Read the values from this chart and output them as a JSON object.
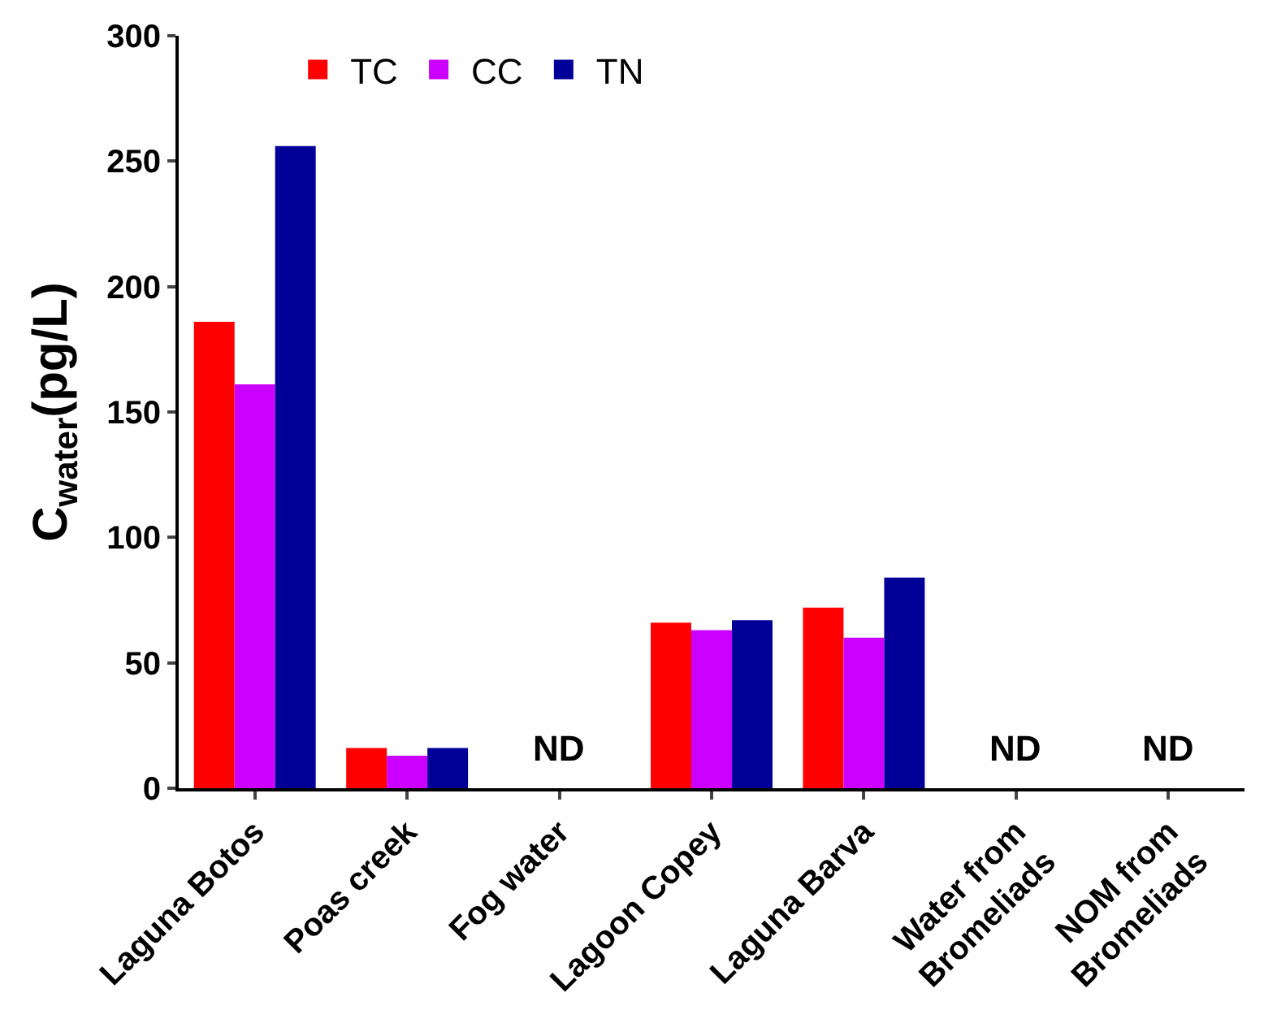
{
  "chart_data": {
    "type": "bar",
    "ylabel": "C$_{water}$(pg/L)",
    "categories": [
      "Laguna Botos",
      "Poas creek",
      "Fog water",
      "Lagoon Copey",
      "Laguna Barva",
      "Water from\nBromeliads",
      "NOM from\nBromeliads"
    ],
    "series": [
      {
        "name": "TC",
        "color": "#ff0000",
        "values": [
          186,
          16,
          null,
          66,
          72,
          null,
          null
        ]
      },
      {
        "name": "CC",
        "color": "#cc00ff",
        "values": [
          161,
          13,
          null,
          63,
          60,
          null,
          null
        ]
      },
      {
        "name": "TN",
        "color": "#000099",
        "values": [
          256,
          16,
          null,
          67,
          84,
          null,
          null
        ]
      }
    ],
    "ylim": [
      0,
      300
    ],
    "yticks": [
      0,
      50,
      100,
      150,
      200,
      250,
      300
    ],
    "legend": "top left",
    "annotations": [
      "ND",
      "ND",
      "ND"
    ]
  }
}
